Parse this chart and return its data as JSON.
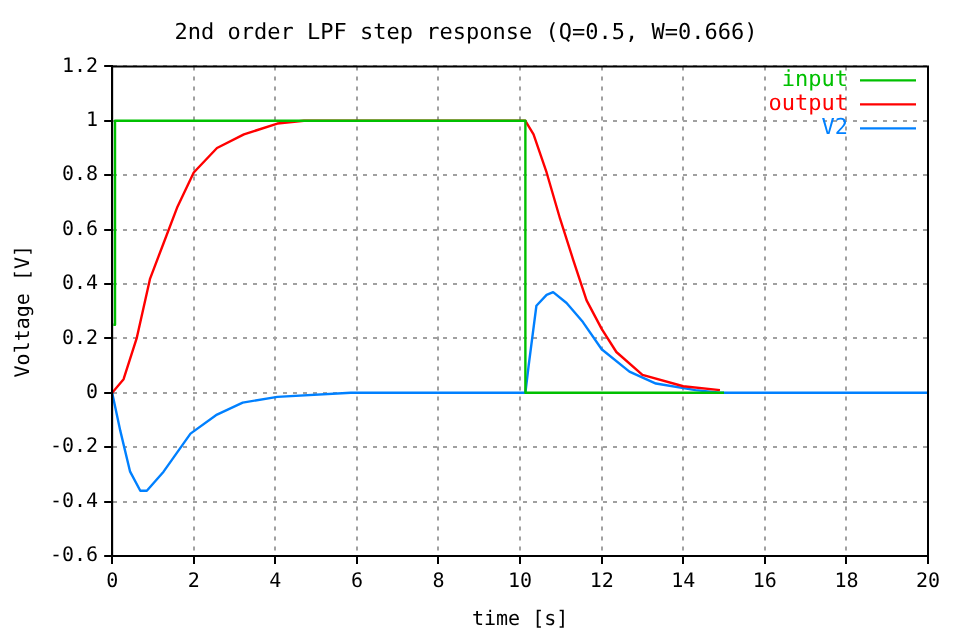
{
  "chart_data": {
    "type": "line",
    "title": "2nd order LPF step response (Q=0.5, W=0.666)",
    "xlabel": "time [s]",
    "ylabel": "Voltage [V]",
    "xlim": [
      0,
      20
    ],
    "xticks": [
      0,
      2,
      4,
      6,
      8,
      10,
      12,
      14,
      16,
      18,
      20
    ],
    "ylim": [
      -0.6,
      1.2
    ],
    "yticks": [
      -0.6,
      -0.4,
      -0.2,
      0,
      0.2,
      0.4,
      0.6,
      0.8,
      1,
      1.2
    ],
    "grid": true,
    "legend": "top right",
    "marker": "none",
    "line_style": "solid",
    "series": [
      {
        "name": "input",
        "color": "#00c000",
        "x": [
          0.03,
          0.07,
          0.07,
          10.13,
          10.13,
          15
        ],
        "values": [
          0.25,
          0.25,
          1,
          1,
          0,
          0
        ]
      },
      {
        "name": "output",
        "color": "#ff0000",
        "x": [
          0,
          0.28,
          0.6,
          0.93,
          1.26,
          1.59,
          2,
          2.57,
          3.23,
          4.05,
          4.7,
          10.13,
          10.33,
          10.65,
          10.98,
          11.3,
          11.63,
          12,
          12.36,
          13,
          14,
          14.9
        ],
        "values": [
          0,
          0.05,
          0.2,
          0.42,
          0.55,
          0.68,
          0.81,
          0.9,
          0.95,
          0.99,
          1,
          1,
          0.95,
          0.81,
          0.64,
          0.49,
          0.34,
          0.235,
          0.15,
          0.066,
          0.024,
          0.01
        ]
      },
      {
        "name": "V2",
        "color": "#0080ff",
        "x": [
          0,
          0.2,
          0.44,
          0.69,
          0.85,
          1.26,
          1.92,
          2.57,
          3.2,
          4.05,
          5.85,
          10.13,
          10.21,
          10.4,
          10.65,
          10.81,
          11.14,
          11.54,
          12,
          12.68,
          13.33,
          14.3,
          14.9,
          20
        ],
        "values": [
          0,
          -0.14,
          -0.29,
          -0.36,
          -0.36,
          -0.29,
          -0.15,
          -0.08,
          -0.036,
          -0.015,
          0,
          0,
          0.1,
          0.32,
          0.36,
          0.37,
          0.33,
          0.26,
          0.16,
          0.078,
          0.034,
          0.01,
          0,
          0
        ]
      }
    ]
  }
}
